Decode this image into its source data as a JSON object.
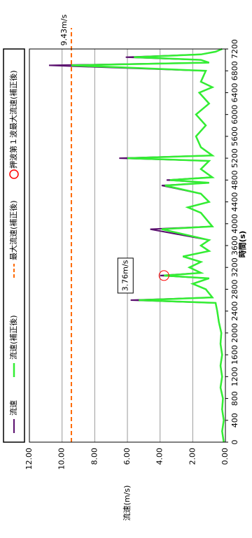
{
  "chart_data": {
    "type": "line",
    "xlabel": "時間(s)",
    "ylabel": "流速(m/s)",
    "x": [
      0,
      200,
      400,
      600,
      800,
      1000,
      1200,
      1400,
      1600,
      1800,
      2000,
      2200,
      2400,
      2550,
      2600,
      2650,
      2800,
      2900,
      3000,
      3050,
      3100,
      3200,
      3300,
      3400,
      3500,
      3600,
      3700,
      3900,
      3950,
      4200,
      4300,
      4400,
      4550,
      4700,
      4750,
      4800,
      4850,
      5000,
      5150,
      5200,
      5250,
      5400,
      5600,
      5800,
      6000,
      6200,
      6400,
      6500,
      6600,
      6800,
      6900,
      6950,
      7000,
      7050,
      7100,
      7150,
      7200
    ],
    "series": [
      {
        "name": "流速",
        "color": "#5a0f6e",
        "values": [
          0.1,
          0.2,
          0.1,
          0.2,
          0.15,
          0.3,
          0.2,
          0.3,
          0.2,
          0.3,
          0.25,
          0.4,
          0.5,
          0.6,
          5.8,
          0.8,
          1.2,
          2.0,
          1.0,
          4.0,
          1.5,
          2.2,
          1.5,
          2.6,
          1.0,
          1.5,
          1.0,
          4.6,
          0.8,
          1.5,
          2.3,
          1.0,
          1.5,
          3.9,
          1.0,
          3.6,
          0.8,
          1.5,
          1.0,
          6.5,
          0.8,
          1.5,
          1.8,
          1.2,
          1.8,
          1.0,
          1.6,
          0.8,
          1.5,
          1.2,
          10.8,
          1.0,
          1.5,
          6.1,
          1.5,
          0.6,
          0.2
        ]
      },
      {
        "name": "流速(補正後)",
        "color": "#33ee33",
        "values": [
          0.1,
          0.2,
          0.1,
          0.2,
          0.15,
          0.3,
          0.2,
          0.3,
          0.2,
          0.3,
          0.25,
          0.4,
          0.5,
          0.6,
          5.3,
          0.8,
          1.2,
          2.0,
          1.0,
          3.76,
          1.5,
          2.2,
          1.5,
          2.6,
          1.0,
          1.5,
          1.0,
          3.9,
          0.8,
          1.5,
          2.3,
          1.0,
          1.5,
          3.7,
          1.0,
          3.4,
          0.8,
          1.5,
          1.0,
          6.0,
          0.8,
          1.5,
          1.8,
          1.2,
          1.8,
          1.0,
          1.6,
          0.8,
          1.5,
          1.2,
          9.43,
          1.0,
          1.5,
          5.6,
          1.5,
          0.6,
          0.2
        ]
      }
    ],
    "max_line": {
      "name": "最大流速(補正後)",
      "color": "#ff6a00",
      "value": 9.43,
      "label": "9.43m/s"
    },
    "first_wave": {
      "name": "押波第１波最大流速(補正後)",
      "color": "#ff0000",
      "x": 3050,
      "value": 3.76,
      "label": "3.76m/s"
    },
    "xlim": [
      0,
      7200
    ],
    "xticks": [
      0,
      400,
      800,
      1200,
      1600,
      2000,
      2400,
      2800,
      3200,
      3600,
      4000,
      4400,
      4800,
      5200,
      5600,
      6000,
      6400,
      6800,
      7200
    ],
    "ylim": [
      0,
      12
    ],
    "yticks": [
      {
        "value": 0,
        "label": "0.00"
      },
      {
        "value": 2,
        "label": "2.00"
      },
      {
        "value": 4,
        "label": "4.00"
      },
      {
        "value": 6,
        "label": "6.00"
      },
      {
        "value": 8,
        "label": "8.00"
      },
      {
        "value": 10,
        "label": "10.00"
      },
      {
        "value": 12,
        "label": "12.00"
      }
    ],
    "grid": true,
    "legend": "top"
  }
}
